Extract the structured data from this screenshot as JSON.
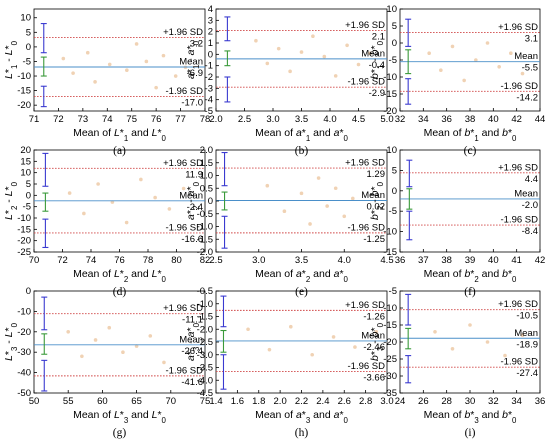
{
  "colors": {
    "sd_line": "#d14b4b",
    "mean_line": "#4a8fc9",
    "ci_upper": "#3a3ad0",
    "ci_mean": "#3a9a3a",
    "points": "#f0d2b4",
    "axis": "#000000"
  },
  "chart_data": [
    {
      "type": "scatter",
      "panel_label": "(a)",
      "xlabel": "Mean of L*1 and L*0",
      "ylabel": "L*1 - L*0",
      "xlim": [
        71,
        78
      ],
      "ylim": [
        -22,
        13
      ],
      "xticks": [
        "71",
        "72",
        "73",
        "74",
        "75",
        "76",
        "77",
        "78"
      ],
      "yticks": [
        "10",
        "5",
        "0",
        "-5",
        "-10",
        "-15",
        "-20"
      ],
      "upper_label": "+1.96 SD",
      "upper": 3.2,
      "upper_text": "3.2",
      "mean_label": "Mean",
      "mean": -6.9,
      "mean_text": "-6.9",
      "lower_label": "-1.96 SD",
      "lower": -17.0,
      "lower_text": "-17.0",
      "ci_x": 71.4,
      "ci_upper": [
        -2,
        8
      ],
      "ci_mean": [
        -10,
        -3.5
      ],
      "ci_lower": [
        -20.5,
        -13.5
      ],
      "points": [
        [
          72.2,
          -4
        ],
        [
          72.6,
          -9
        ],
        [
          73.2,
          -2
        ],
        [
          73.5,
          -12
        ],
        [
          74.1,
          -6
        ],
        [
          74.8,
          -8
        ],
        [
          75.2,
          1
        ],
        [
          75.6,
          -5
        ],
        [
          76,
          -14
        ],
        [
          76.3,
          -3
        ],
        [
          76.8,
          -10
        ],
        [
          77.2,
          -7
        ]
      ]
    },
    {
      "type": "scatter",
      "panel_label": "(b)",
      "xlabel": "Mean of a*1 and a*0",
      "ylabel": "a*1 - a*0",
      "xlim": [
        2.0,
        5.0
      ],
      "ylim": [
        -5,
        4
      ],
      "xticks": [
        "2.0",
        "2.5",
        "3.0",
        "3.5",
        "4.0",
        "4.5",
        "5.0"
      ],
      "yticks": [
        "4",
        "3",
        "2",
        "1",
        "0",
        "-1",
        "-2",
        "-3",
        "-4",
        "-5"
      ],
      "upper_label": "+1.96 SD",
      "upper": 2.1,
      "upper_text": "2.1",
      "mean_label": "Mean",
      "mean": -0.4,
      "mean_text": "-0.4",
      "lower_label": "-1.96 SD",
      "lower": -2.9,
      "lower_text": "-2.9",
      "ci_x": 2.2,
      "ci_upper": [
        1.2,
        3.3
      ],
      "ci_mean": [
        -1.0,
        0.3
      ],
      "ci_lower": [
        -4.2,
        -2.0
      ],
      "points": [
        [
          2.7,
          1.2
        ],
        [
          2.9,
          -0.8
        ],
        [
          3.1,
          0.5
        ],
        [
          3.3,
          -1.5
        ],
        [
          3.5,
          0.2
        ],
        [
          3.7,
          1.6
        ],
        [
          3.9,
          -0.2
        ],
        [
          4.1,
          -1.9
        ],
        [
          4.3,
          0.8
        ],
        [
          4.5,
          -0.9
        ],
        [
          4.7,
          0.1
        ]
      ]
    },
    {
      "type": "scatter",
      "panel_label": "(c)",
      "xlabel": "Mean of b*1 and b*0",
      "ylabel": "b*1 - b*0",
      "xlim": [
        32,
        44
      ],
      "ylim": [
        -20,
        10
      ],
      "xticks": [
        "32",
        "34",
        "36",
        "38",
        "40",
        "42",
        "44"
      ],
      "yticks": [
        "10",
        "5",
        "0",
        "-5",
        "-10",
        "-15",
        "-20"
      ],
      "upper_label": "+1.96 SD",
      "upper": 3.1,
      "upper_text": "3.1",
      "mean_label": "Mean",
      "mean": -5.5,
      "mean_text": "-5.5",
      "lower_label": "-1.96 SD",
      "lower": -14.2,
      "lower_text": "-14.2",
      "ci_x": 32.7,
      "ci_upper": [
        -1,
        7
      ],
      "ci_mean": [
        -9,
        -2
      ],
      "ci_lower": [
        -18,
        -10.5
      ],
      "points": [
        [
          34.5,
          -3
        ],
        [
          35.5,
          -8
        ],
        [
          36.5,
          -1
        ],
        [
          37.5,
          -11
        ],
        [
          38.5,
          -5
        ],
        [
          39.5,
          0
        ],
        [
          40.5,
          -7
        ],
        [
          41.5,
          -3
        ],
        [
          42.5,
          -9
        ]
      ]
    },
    {
      "type": "scatter",
      "panel_label": "(d)",
      "xlabel": "Mean of L*2 and L*0",
      "ylabel": "L*2 - L*0",
      "xlim": [
        70,
        82
      ],
      "ylim": [
        -25,
        20
      ],
      "xticks": [
        "70",
        "72",
        "74",
        "76",
        "78",
        "80",
        "82"
      ],
      "yticks": [
        "20",
        "15",
        "10",
        "5",
        "0",
        "-5",
        "-10",
        "-15",
        "-20",
        "-25"
      ],
      "upper_label": "+1.96 SD",
      "upper": 11.9,
      "upper_text": "11.9",
      "mean_label": "Mean",
      "mean": -2.4,
      "mean_text": "-2.4",
      "lower_label": "-1.96 SD",
      "lower": -16.6,
      "lower_text": "-16.6",
      "ci_x": 70.8,
      "ci_upper": [
        4,
        18.5
      ],
      "ci_mean": [
        -7,
        1
      ],
      "ci_lower": [
        -23,
        -10.5
      ],
      "points": [
        [
          72.5,
          1
        ],
        [
          73.5,
          -8
        ],
        [
          74.5,
          5
        ],
        [
          75.5,
          -3
        ],
        [
          76.5,
          -12
        ],
        [
          77.5,
          7
        ],
        [
          78.5,
          -1
        ],
        [
          79.5,
          -6
        ],
        [
          80.5,
          3
        ]
      ]
    },
    {
      "type": "scatter",
      "panel_label": "(e)",
      "xlabel": "Mean of a*2 and a*0",
      "ylabel": "a*2 - a*0",
      "xlim": [
        2.5,
        4.5
      ],
      "ylim": [
        -2.0,
        2.0
      ],
      "xticks": [
        "2.5",
        "3.0",
        "3.5",
        "4.0",
        "4.5"
      ],
      "yticks": [
        "2.0",
        "1.5",
        "1.0",
        "0.5",
        "0",
        "-0.5",
        "-1.0",
        "-1.5",
        "-2.0"
      ],
      "upper_label": "+1.96 SD",
      "upper": 1.29,
      "upper_text": "1.29",
      "mean_label": "Mean",
      "mean": 0.02,
      "mean_text": "0.02",
      "lower_label": "-1.96 SD",
      "lower": -1.25,
      "lower_text": "-1.25",
      "ci_x": 2.6,
      "ci_upper": [
        0.6,
        1.9
      ],
      "ci_mean": [
        -0.35,
        0.35
      ],
      "ci_lower": [
        -1.85,
        -0.6
      ],
      "points": [
        [
          3.1,
          0.6
        ],
        [
          3.3,
          -0.4
        ],
        [
          3.5,
          0.3
        ],
        [
          3.6,
          -0.9
        ],
        [
          3.7,
          0.9
        ],
        [
          3.8,
          -0.2
        ],
        [
          3.9,
          0.5
        ],
        [
          4.0,
          -0.6
        ],
        [
          4.1,
          0.1
        ]
      ]
    },
    {
      "type": "scatter",
      "panel_label": "(f)",
      "xlabel": "Mean of b*2 and b*0",
      "ylabel": "b*2 - b*0",
      "xlim": [
        36,
        42
      ],
      "ylim": [
        -15,
        10
      ],
      "xticks": [
        "36",
        "37",
        "38",
        "39",
        "40",
        "41",
        "42"
      ],
      "yticks": [
        "10",
        "5",
        "0",
        "-5",
        "-10",
        "-15"
      ],
      "upper_label": "+1.96 SD",
      "upper": 4.4,
      "upper_text": "4.4",
      "mean_label": "Mean",
      "mean": -2.0,
      "mean_text": "-2.0",
      "lower_label": "-1.96 SD",
      "lower": -8.4,
      "lower_text": "-8.4",
      "ci_x": 36.4,
      "ci_upper": [
        1,
        7.5
      ],
      "ci_mean": [
        -4.5,
        0.5
      ],
      "ci_lower": [
        -12,
        -5
      ]
    },
    {
      "type": "scatter",
      "panel_label": "(g)",
      "xlabel": "Mean of L*3 and L*0",
      "ylabel": "L*3 - L*0",
      "xlim": [
        50,
        75
      ],
      "ylim": [
        -50,
        0
      ],
      "xticks": [
        "50",
        "55",
        "60",
        "65",
        "70",
        "75"
      ],
      "yticks": [
        "0",
        "-10",
        "-20",
        "-30",
        "-40",
        "-50"
      ],
      "upper_label": "+1.96 SD",
      "upper": -11.1,
      "upper_text": "-11.1",
      "mean_label": "Mean",
      "mean": -26.4,
      "mean_text": "-26.4",
      "lower_label": "-1.96 SD",
      "lower": -41.6,
      "lower_text": "-41.6",
      "ci_x": 51.5,
      "ci_upper": [
        -19,
        -3
      ],
      "ci_mean": [
        -31,
        -21
      ],
      "ci_lower": [
        -49,
        -34
      ],
      "points": [
        [
          55,
          -20
        ],
        [
          57,
          -32
        ],
        [
          59,
          -24
        ],
        [
          61,
          -18
        ],
        [
          63,
          -30
        ],
        [
          65,
          -27
        ],
        [
          67,
          -22
        ],
        [
          69,
          -35
        ]
      ]
    },
    {
      "type": "scatter",
      "panel_label": "(h)",
      "xlabel": "Mean of a*3 and a*0",
      "ylabel": "a*3 - a*0",
      "xlim": [
        1.4,
        3.0
      ],
      "ylim": [
        -4.5,
        -0.5
      ],
      "xticks": [
        "1.4",
        "1.6",
        "1.8",
        "2.0",
        "2.2",
        "2.4",
        "2.6",
        "2.8",
        "3.0"
      ],
      "yticks": [
        "-0.5",
        "-1.0",
        "-1.5",
        "-2.0",
        "-2.5",
        "-3.0",
        "-3.5",
        "-4.0",
        "-4.5"
      ],
      "upper_label": "+1.96 SD",
      "upper": -1.26,
      "upper_text": "-1.26",
      "mean_label": "Mean",
      "mean": -2.46,
      "mean_text": "-2.46",
      "lower_label": "-1.96 SD",
      "lower": -3.66,
      "lower_text": "-3.66",
      "ci_x": 1.47,
      "ci_upper": [
        -1.9,
        -0.7
      ],
      "ci_mean": [
        -2.9,
        -2.05
      ],
      "ci_lower": [
        -4.35,
        -3.0
      ],
      "points": [
        [
          1.7,
          -2.0
        ],
        [
          1.9,
          -2.8
        ],
        [
          2.1,
          -1.9
        ],
        [
          2.3,
          -3.0
        ],
        [
          2.5,
          -2.3
        ],
        [
          2.7,
          -2.7
        ],
        [
          2.9,
          -2.1
        ]
      ]
    },
    {
      "type": "scatter",
      "panel_label": "(i)",
      "xlabel": "Mean of b*3 and b*0",
      "ylabel": "b*3 - b*0",
      "xlim": [
        24,
        36
      ],
      "ylim": [
        -35,
        -5
      ],
      "xticks": [
        "24",
        "26",
        "28",
        "30",
        "32",
        "34",
        "36"
      ],
      "yticks": [
        "-5",
        "-10",
        "-15",
        "-20",
        "-25",
        "-30",
        "-35"
      ],
      "upper_label": "+1.96 SD",
      "upper": -10.5,
      "upper_text": "-10.5",
      "mean_label": "Mean",
      "mean": -18.9,
      "mean_text": "-18.9",
      "lower_label": "-1.96 SD",
      "lower": -27.4,
      "lower_text": "-27.4",
      "ci_x": 24.7,
      "ci_upper": [
        -15,
        -6
      ],
      "ci_mean": [
        -22,
        -16
      ],
      "ci_lower": [
        -32,
        -24
      ],
      "points": [
        [
          27,
          -17
        ],
        [
          28.5,
          -22
        ],
        [
          30,
          -15
        ],
        [
          31.5,
          -20
        ],
        [
          33,
          -24
        ],
        [
          34.5,
          -18
        ]
      ]
    }
  ]
}
